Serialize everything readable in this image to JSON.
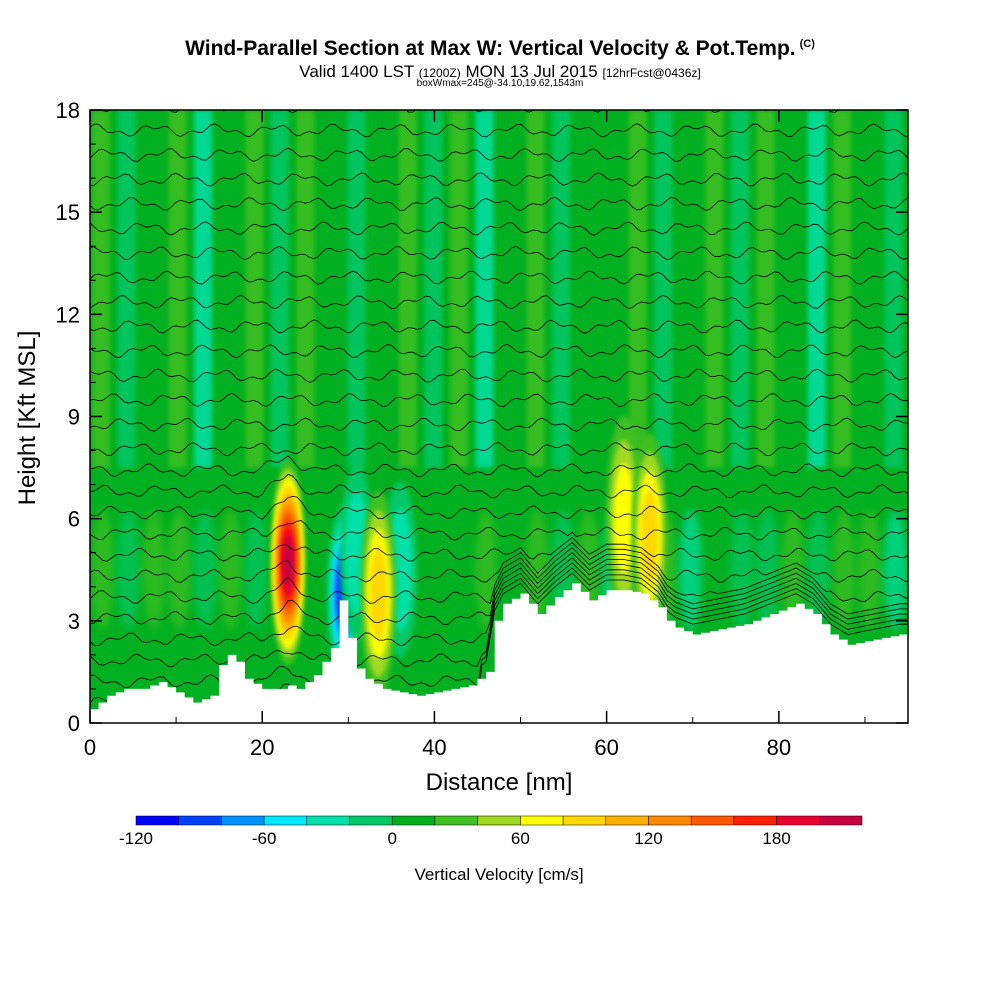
{
  "header": {
    "title": "Wind-Parallel Section at Max W: Vertical Velocity & Pot.Temp.",
    "title_mark": "(C)",
    "valid_prefix": "Valid 1400 LST",
    "valid_utc": "(1200Z)",
    "valid_date": "MON 13 Jul 2015",
    "forecast": "[12hrFcst@0436z]",
    "box_info": "boxWmax=245@-34.10,19.62,1543m"
  },
  "chart_data": {
    "type": "heatmap",
    "xlabel": "Distance [nm]",
    "ylabel": "Height [Kft MSL]",
    "xlim": [
      0,
      95
    ],
    "ylim": [
      0,
      18
    ],
    "xticks": [
      0,
      20,
      40,
      60,
      80
    ],
    "xtick_labels": [
      "0",
      "20",
      "40",
      "60",
      "80"
    ],
    "yticks": [
      0,
      3,
      6,
      9,
      12,
      15,
      18
    ],
    "ytick_labels": [
      "0",
      "3",
      "6",
      "9",
      "12",
      "15",
      "18"
    ],
    "colorbar": {
      "label": "Vertical Velocity [cm/s]",
      "min": -120,
      "max": 220,
      "step": 20,
      "tick_values": [
        -120,
        -60,
        0,
        60,
        120,
        180
      ],
      "tick_labels": [
        "-120",
        "-60",
        "0",
        "60",
        "120",
        "180"
      ],
      "colors": [
        "#0000ff",
        "#0040ff",
        "#0090ff",
        "#00e8ff",
        "#00e0a8",
        "#00c868",
        "#00b020",
        "#40c020",
        "#a0d820",
        "#ffff00",
        "#ffd800",
        "#ffb000",
        "#ff8800",
        "#ff5800",
        "#ff2000",
        "#e80030",
        "#c80040"
      ]
    },
    "terrain_height_kft": {
      "x": [
        0,
        2,
        4,
        6,
        8,
        10,
        12,
        14,
        15,
        16,
        17,
        18,
        20,
        22,
        23,
        24,
        26,
        28,
        29,
        30,
        31,
        32,
        34,
        36,
        38,
        40,
        42,
        44,
        46,
        47,
        48,
        50,
        51,
        52,
        54,
        56,
        58,
        60,
        62,
        64,
        66,
        67,
        68,
        70,
        72,
        74,
        76,
        78,
        80,
        82,
        84,
        86,
        88,
        90,
        92,
        94,
        95
      ],
      "y": [
        0.4,
        0.8,
        1.0,
        1.0,
        1.2,
        0.9,
        0.6,
        0.8,
        1.7,
        2.0,
        1.8,
        1.3,
        1.0,
        1.0,
        1.1,
        1.0,
        1.4,
        2.2,
        3.6,
        2.5,
        1.6,
        1.3,
        1.0,
        0.9,
        0.8,
        0.9,
        1.0,
        1.1,
        1.5,
        3.0,
        3.5,
        3.8,
        3.5,
        3.2,
        3.7,
        4.1,
        3.6,
        3.9,
        3.9,
        3.8,
        3.4,
        3.0,
        2.8,
        2.6,
        2.7,
        2.8,
        2.9,
        3.1,
        3.3,
        3.5,
        3.2,
        2.6,
        2.3,
        2.4,
        2.5,
        2.6,
        2.6
      ]
    },
    "updraft_cores": [
      {
        "x": 23,
        "y_center_kft": 4.7,
        "max_cm_s": 200
      },
      {
        "x": 33.5,
        "y_center_kft": 3.8,
        "max_cm_s": 80
      },
      {
        "x": 62,
        "y_center_kft": 6.0,
        "max_cm_s": 70
      },
      {
        "x": 65,
        "y_center_kft": 5.5,
        "max_cm_s": 80
      }
    ],
    "downdraft_cores": [
      {
        "x": 29.5,
        "y_center_kft": 3.8,
        "min_cm_s": -110
      },
      {
        "x": 31,
        "y_center_kft": 5.0,
        "min_cm_s": -50
      },
      {
        "x": 36,
        "y_center_kft": 4.5,
        "min_cm_s": -40
      }
    ],
    "isentrope_count": 30
  }
}
